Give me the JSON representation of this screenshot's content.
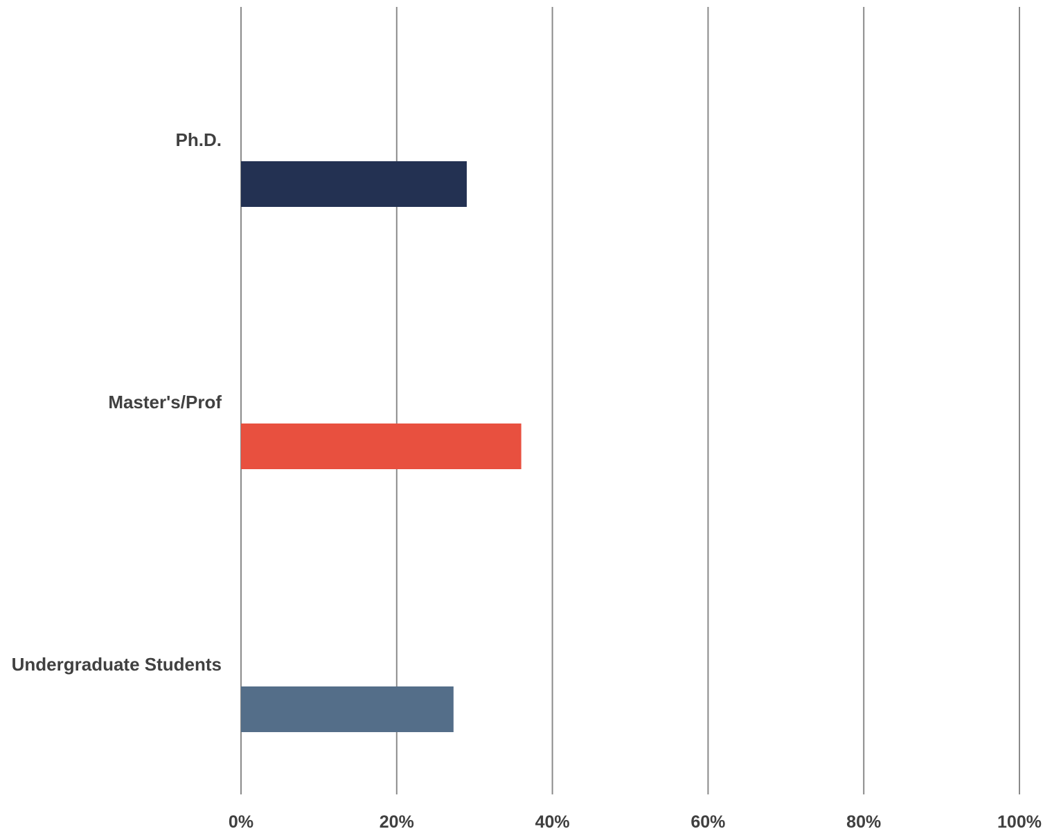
{
  "chart_data": {
    "type": "bar",
    "orientation": "horizontal",
    "categories": [
      "Ph.D.",
      "Master's/Prof",
      "Undergraduate Students"
    ],
    "values": [
      29,
      36,
      27.3
    ],
    "colors": [
      "#233152",
      "#e8503f",
      "#546e89"
    ],
    "xlim": [
      0,
      100
    ],
    "x_ticks": [
      0,
      20,
      40,
      60,
      80,
      100
    ],
    "x_tick_labels": [
      "0%",
      "20%",
      "40%",
      "60%",
      "80%",
      "100%"
    ],
    "grid": "vertical",
    "legend": "none"
  }
}
